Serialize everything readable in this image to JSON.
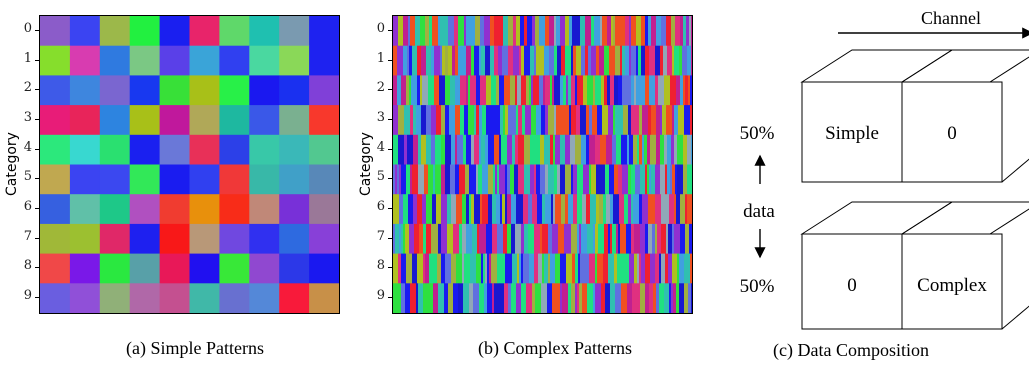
{
  "panels": [
    {
      "caption": "(a)  Simple Patterns",
      "ylabel": "Category",
      "ticks": [
        "0",
        "1",
        "2",
        "3",
        "4",
        "5",
        "6",
        "7",
        "8",
        "9"
      ],
      "grid": [
        [
          "#8b5cc9",
          "#3b44f2",
          "#9cb84a",
          "#22f040",
          "#1a1ff0",
          "#e8246a",
          "#5fd86a",
          "#1fc0b0",
          "#7a9ab0",
          "#1e22f0"
        ],
        [
          "#86de2c",
          "#d83cb0",
          "#2f7ae0",
          "#7bc884",
          "#5a40e8",
          "#3aa4d8",
          "#3040f0",
          "#4ad8a0",
          "#8ad858",
          "#1e22f0"
        ],
        [
          "#3e5ae8",
          "#3e86de",
          "#7a66d0",
          "#1838f0",
          "#38e038",
          "#a8c018",
          "#28f048",
          "#1a18f0",
          "#1a30f0",
          "#8040d8"
        ],
        [
          "#e81c78",
          "#e8245a",
          "#2d84e0",
          "#a8c018",
          "#c0189c",
          "#b0a858",
          "#1eb8a0",
          "#3a58e8",
          "#7ab090",
          "#f8382c"
        ],
        [
          "#2ce87c",
          "#38d8d0",
          "#2ae070",
          "#1a20f0",
          "#6a78d8",
          "#e83058",
          "#2c40e8",
          "#38c8a8",
          "#3ab8b8",
          "#52c890"
        ],
        [
          "#c0a850",
          "#3b44f2",
          "#3b48f0",
          "#32e858",
          "#1a1cf0",
          "#3040f0",
          "#f03838",
          "#38b8a8",
          "#40a0c8",
          "#5888b8"
        ],
        [
          "#3660e0",
          "#60c0a8",
          "#1ec888",
          "#b050c0",
          "#f03c30",
          "#e8900c",
          "#f82c18",
          "#c08878",
          "#7830d8",
          "#9a7898"
        ],
        [
          "#a0b838",
          "#9cc030",
          "#e02868",
          "#1e20f0",
          "#f81818",
          "#b89878",
          "#7048e0",
          "#3030f0",
          "#2e6ae0",
          "#8840d8"
        ],
        [
          "#f04848",
          "#7a18e8",
          "#2ae840",
          "#58a0a8",
          "#e81858",
          "#2010f0",
          "#38e838",
          "#9048d0",
          "#2c38e8",
          "#1a18f0"
        ],
        [
          "#6a5ee0",
          "#9050d8",
          "#90b078",
          "#b068a8",
          "#c45090",
          "#40b8a8",
          "#6870d0",
          "#5488d8",
          "#f81a3a",
          "#c89048"
        ]
      ]
    },
    {
      "caption": "(b)  Complex Patterns",
      "ylabel": "Category",
      "ticks": [
        "0",
        "1",
        "2",
        "3",
        "4",
        "5",
        "6",
        "7",
        "8",
        "9"
      ]
    },
    {
      "caption": "(c)  Data Composition",
      "channel_label": "Channel",
      "data_label": "data",
      "top_percent": "50%",
      "bottom_percent": "50%",
      "top_cells": [
        "Simple",
        "0"
      ],
      "bottom_cells": [
        "0",
        "Complex"
      ]
    }
  ],
  "stripe_palette": [
    "#1a1af0",
    "#ef2030",
    "#2ee040",
    "#a0b040",
    "#9030d0",
    "#30c0b0",
    "#e03080",
    "#40a0e0",
    "#90a8b8",
    "#1818d0",
    "#c02090",
    "#20e080",
    "#f05020",
    "#6070e0",
    "#b0c020"
  ]
}
